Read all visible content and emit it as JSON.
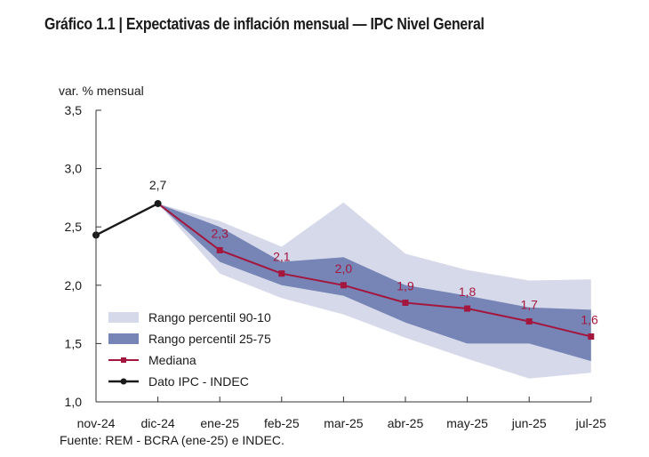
{
  "title": "Gráfico 1.1 | Expectativas de inflación mensual — IPC Nivel General",
  "source": "Fuente: REM - BCRA (ene-25) e INDEC.",
  "colors": {
    "band_90_10": "#d6d9ea",
    "band_25_75": "#7685b5",
    "median": "#a3173f",
    "ipc": "#1a1a1a",
    "axis": "#333333"
  },
  "chart_data": {
    "type": "area",
    "title": "Gráfico 1.1 | Expectativas de inflación mensual — IPC Nivel General",
    "xlabel": "",
    "ylabel": "var. % mensual",
    "ylim": [
      1.0,
      3.5
    ],
    "yticks": [
      1.0,
      1.5,
      2.0,
      2.5,
      3.0,
      3.5
    ],
    "ytick_labels": [
      "1,0",
      "1,5",
      "2,0",
      "2,5",
      "3,0",
      "3,5"
    ],
    "categories": [
      "nov-24",
      "dic-24",
      "ene-25",
      "feb-25",
      "mar-25",
      "abr-25",
      "may-25",
      "jun-25",
      "jul-25"
    ],
    "grid": false,
    "legend_position": "bottom-left",
    "series": [
      {
        "name": "Rango percentil 90-10",
        "kind": "band",
        "categories": [
          "dic-24",
          "ene-25",
          "feb-25",
          "mar-25",
          "abr-25",
          "may-25",
          "jun-25",
          "jul-25"
        ],
        "lower": [
          2.7,
          2.1,
          1.89,
          1.75,
          1.55,
          1.37,
          1.2,
          1.25
        ],
        "upper": [
          2.7,
          2.55,
          2.33,
          2.71,
          2.27,
          2.13,
          2.04,
          2.05
        ]
      },
      {
        "name": "Rango percentil 25-75",
        "kind": "band",
        "categories": [
          "dic-24",
          "ene-25",
          "feb-25",
          "mar-25",
          "abr-25",
          "may-25",
          "jun-25",
          "jul-25"
        ],
        "lower": [
          2.7,
          2.2,
          2.0,
          1.91,
          1.68,
          1.5,
          1.5,
          1.35
        ],
        "upper": [
          2.7,
          2.5,
          2.2,
          2.24,
          2.0,
          1.91,
          1.81,
          1.79
        ]
      },
      {
        "name": "Mediana",
        "kind": "line",
        "marker": "square",
        "categories": [
          "dic-24",
          "ene-25",
          "feb-25",
          "mar-25",
          "abr-25",
          "may-25",
          "jun-25",
          "jul-25"
        ],
        "values": [
          2.7,
          2.3,
          2.1,
          2.0,
          1.85,
          1.8,
          1.69,
          1.56
        ],
        "labels": [
          null,
          "2,3",
          "2,1",
          "2,0",
          "1,9",
          "1,8",
          "1,7",
          "1,6"
        ]
      },
      {
        "name": "Dato IPC - INDEC",
        "kind": "line",
        "marker": "circle",
        "categories": [
          "nov-24",
          "dic-24"
        ],
        "values": [
          2.43,
          2.7
        ],
        "labels": [
          null,
          "2,7"
        ]
      }
    ],
    "legend": [
      {
        "label": "Rango percentil 90-10",
        "symbol": "band-light"
      },
      {
        "label": "Rango percentil 25-75",
        "symbol": "band-dark"
      },
      {
        "label": "Mediana",
        "symbol": "line-square"
      },
      {
        "label": "Dato IPC - INDEC",
        "symbol": "line-circle"
      }
    ]
  }
}
